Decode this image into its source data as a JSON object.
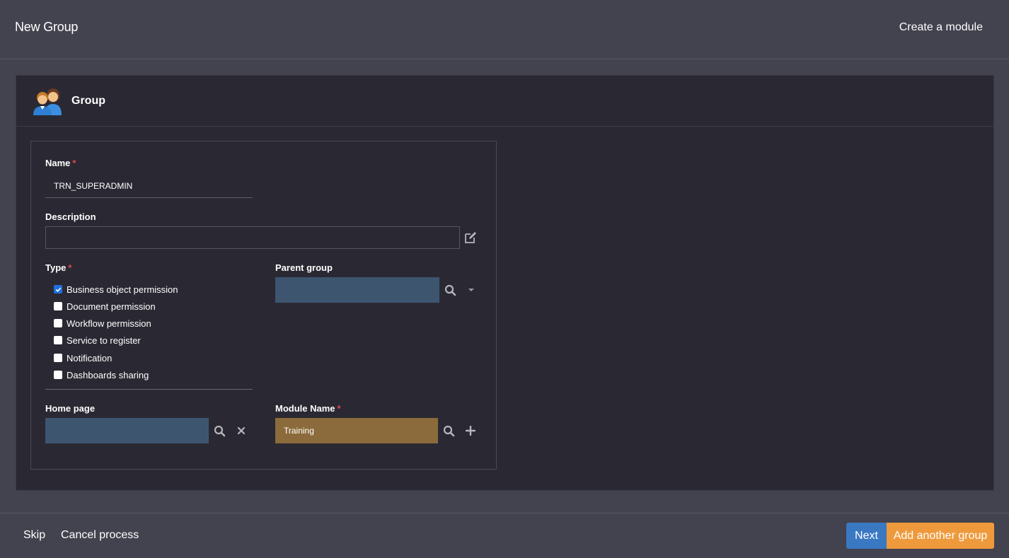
{
  "header": {
    "title": "New Group",
    "create_module_label": "Create a module"
  },
  "panel": {
    "title": "Group",
    "icon": "people-group-icon"
  },
  "form": {
    "name": {
      "label": "Name",
      "required_mark": "*",
      "value": "TRN_SUPERADMIN"
    },
    "description": {
      "label": "Description",
      "value": "",
      "edit_icon": "edit-icon"
    },
    "type": {
      "label": "Type",
      "required_mark": "*",
      "options": [
        {
          "label": "Business object permission",
          "checked": true
        },
        {
          "label": "Document permission",
          "checked": false
        },
        {
          "label": "Workflow permission",
          "checked": false
        },
        {
          "label": "Service to register",
          "checked": false
        },
        {
          "label": "Notification",
          "checked": false
        },
        {
          "label": "Dashboards sharing",
          "checked": false
        }
      ]
    },
    "parent_group": {
      "label": "Parent group",
      "value": ""
    },
    "home_page": {
      "label": "Home page",
      "value": ""
    },
    "module_name": {
      "label": "Module Name",
      "required_mark": "*",
      "value": "Training"
    }
  },
  "footer": {
    "skip_label": "Skip",
    "cancel_label": "Cancel process",
    "next_label": "Next",
    "add_another_label": "Add another group"
  },
  "colors": {
    "page_bg": "#43424f",
    "panel_bg": "#2a2933",
    "lookup_bg": "#3e5570",
    "module_bg": "#8b6b3b",
    "next_btn": "#3a78c2",
    "add_btn": "#ee9a3c",
    "checkbox_checked": "#1f6fe0",
    "required": "#e0474c"
  }
}
